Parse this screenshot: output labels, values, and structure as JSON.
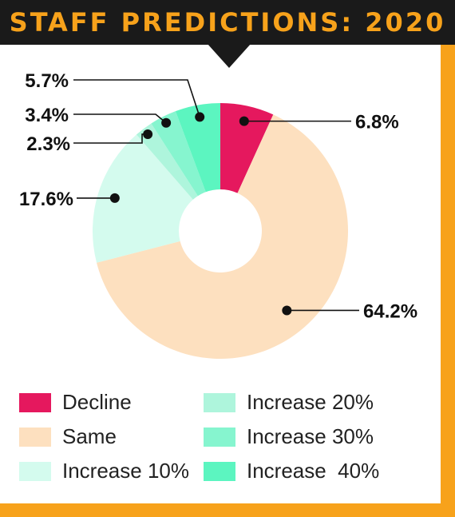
{
  "chart_data": {
    "type": "pie",
    "title": "STAFF PREDICTIONS: 2020",
    "donut": true,
    "slices": [
      {
        "name": "Decline",
        "value": 6.8,
        "label": "6.8%",
        "color": "#e5185e"
      },
      {
        "name": "Same",
        "value": 64.2,
        "label": "64.2%",
        "color": "#fde0bf"
      },
      {
        "name": "Increase 10%",
        "value": 17.6,
        "label": "17.6%",
        "color": "#d4fbee"
      },
      {
        "name": "Increase 20%",
        "value": 2.3,
        "label": "2.3%",
        "color": "#aef5dc"
      },
      {
        "name": "Increase 30%",
        "value": 3.4,
        "label": "3.4%",
        "color": "#86f5cf"
      },
      {
        "name": "Increase  40%",
        "value": 5.7,
        "label": "5.7%",
        "color": "#5cf5c0"
      }
    ],
    "legend_position": "bottom"
  },
  "colors": {
    "frame": "#f7a21b",
    "header": "#1a1a1a",
    "title": "#f7a21b"
  }
}
